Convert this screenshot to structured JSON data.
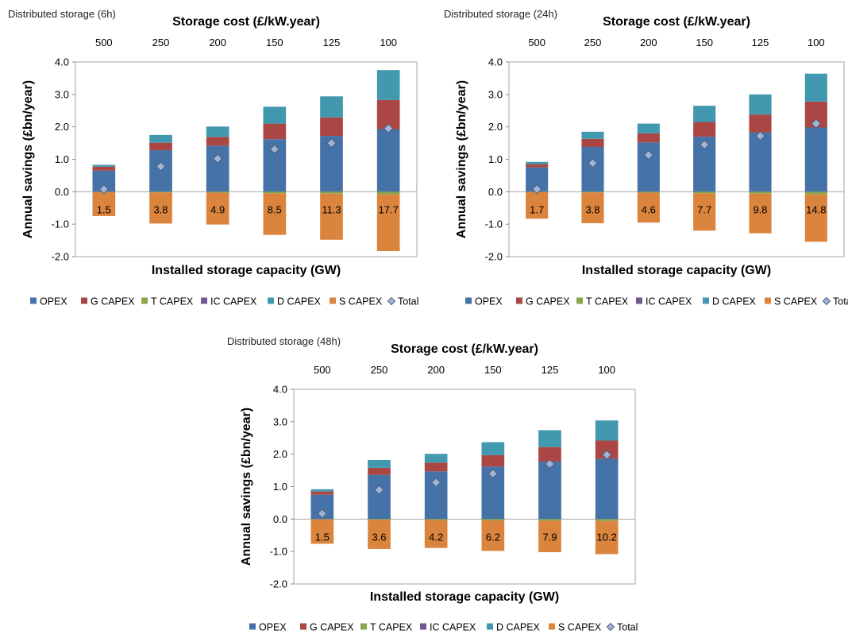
{
  "legend_order": [
    "OPEX",
    "G CAPEX",
    "T CAPEX",
    "IC CAPEX",
    "D CAPEX",
    "S CAPEX",
    "Total"
  ],
  "colors": {
    "OPEX": "#4572A7",
    "G CAPEX": "#AA4643",
    "T CAPEX": "#89A54E",
    "IC CAPEX": "#71588F",
    "D CAPEX": "#4198AF",
    "S CAPEX": "#DB843D",
    "Total": "#A0B4D6"
  },
  "chart_data": [
    {
      "type": "bar",
      "stacked": true,
      "header": "Distributed storage (6h)",
      "top_axis_title": "Storage cost (£/kW.year)",
      "top_categories": [
        "500",
        "250",
        "200",
        "150",
        "125",
        "100"
      ],
      "xlabel": "Installed storage capacity (GW)",
      "ylabel": "Annual savings (£bn/year)",
      "ylim": [
        -2.0,
        4.0
      ],
      "yticks": [
        "4.0",
        "3.0",
        "2.0",
        "1.0",
        "0.0",
        "-1.0",
        "-2.0"
      ],
      "categories": [
        "1.5",
        "3.8",
        "4.9",
        "8.5",
        "11.3",
        "17.7"
      ],
      "series": [
        {
          "name": "OPEX",
          "values": [
            0.65,
            1.28,
            1.42,
            1.62,
            1.72,
            1.93
          ]
        },
        {
          "name": "G CAPEX",
          "values": [
            0.12,
            0.23,
            0.27,
            0.48,
            0.57,
            0.9
          ]
        },
        {
          "name": "T CAPEX",
          "values": [
            -0.01,
            -0.02,
            -0.03,
            -0.05,
            -0.06,
            -0.08
          ]
        },
        {
          "name": "IC CAPEX",
          "values": [
            0.0,
            0.0,
            0.0,
            0.0,
            0.0,
            0.0
          ]
        },
        {
          "name": "D CAPEX",
          "values": [
            0.06,
            0.24,
            0.32,
            0.52,
            0.65,
            0.92
          ]
        },
        {
          "name": "S CAPEX",
          "values": [
            -0.74,
            -0.96,
            -0.98,
            -1.28,
            -1.42,
            -1.75
          ]
        },
        {
          "name": "Total",
          "values": [
            0.08,
            0.78,
            1.02,
            1.31,
            1.5,
            1.95
          ]
        }
      ]
    },
    {
      "type": "bar",
      "stacked": true,
      "header": "Distributed storage (24h)",
      "top_axis_title": "Storage cost (£/kW.year)",
      "top_categories": [
        "500",
        "250",
        "200",
        "150",
        "125",
        "100"
      ],
      "xlabel": "Installed storage capacity (GW)",
      "ylabel": "Annual savings (£bn/year)",
      "ylim": [
        -2.0,
        4.0
      ],
      "yticks": [
        "4.0",
        "3.0",
        "2.0",
        "1.0",
        "0.0",
        "-1.0",
        "-2.0"
      ],
      "categories": [
        "1.7",
        "3.8",
        "4.6",
        "7.7",
        "9.8",
        "14.8"
      ],
      "series": [
        {
          "name": "OPEX",
          "values": [
            0.75,
            1.38,
            1.52,
            1.7,
            1.83,
            1.98
          ]
        },
        {
          "name": "G CAPEX",
          "values": [
            0.1,
            0.25,
            0.28,
            0.45,
            0.55,
            0.8
          ]
        },
        {
          "name": "T CAPEX",
          "values": [
            -0.01,
            -0.02,
            -0.03,
            -0.05,
            -0.06,
            -0.08
          ]
        },
        {
          "name": "IC CAPEX",
          "values": [
            0.0,
            0.0,
            0.0,
            0.0,
            0.0,
            0.0
          ]
        },
        {
          "name": "D CAPEX",
          "values": [
            0.07,
            0.22,
            0.3,
            0.5,
            0.62,
            0.86
          ]
        },
        {
          "name": "S CAPEX",
          "values": [
            -0.82,
            -0.95,
            -0.92,
            -1.15,
            -1.22,
            -1.46
          ]
        },
        {
          "name": "Total",
          "values": [
            0.08,
            0.88,
            1.13,
            1.45,
            1.72,
            2.1
          ]
        }
      ]
    },
    {
      "type": "bar",
      "stacked": true,
      "header": "Distributed storage (48h)",
      "top_axis_title": "Storage cost (£/kW.year)",
      "top_categories": [
        "500",
        "250",
        "200",
        "150",
        "125",
        "100"
      ],
      "xlabel": "Installed storage capacity (GW)",
      "ylabel": "Annual savings (£bn/year)",
      "ylim": [
        -2.0,
        4.0
      ],
      "yticks": [
        "4.0",
        "3.0",
        "2.0",
        "1.0",
        "0.0",
        "-1.0",
        "-2.0"
      ],
      "categories": [
        "1.5",
        "3.6",
        "4.2",
        "6.2",
        "7.9",
        "10.2"
      ],
      "series": [
        {
          "name": "OPEX",
          "values": [
            0.75,
            1.36,
            1.47,
            1.62,
            1.77,
            1.86
          ]
        },
        {
          "name": "G CAPEX",
          "values": [
            0.1,
            0.22,
            0.27,
            0.35,
            0.45,
            0.56
          ]
        },
        {
          "name": "T CAPEX",
          "values": [
            -0.01,
            -0.02,
            -0.03,
            -0.04,
            -0.05,
            -0.06
          ]
        },
        {
          "name": "IC CAPEX",
          "values": [
            0.0,
            0.0,
            0.0,
            0.0,
            0.0,
            0.0
          ]
        },
        {
          "name": "D CAPEX",
          "values": [
            0.07,
            0.24,
            0.27,
            0.4,
            0.52,
            0.62
          ]
        },
        {
          "name": "S CAPEX",
          "values": [
            -0.75,
            -0.9,
            -0.86,
            -0.94,
            -0.97,
            -1.02
          ]
        },
        {
          "name": "Total",
          "values": [
            0.17,
            0.9,
            1.13,
            1.4,
            1.7,
            1.98
          ]
        }
      ]
    }
  ]
}
